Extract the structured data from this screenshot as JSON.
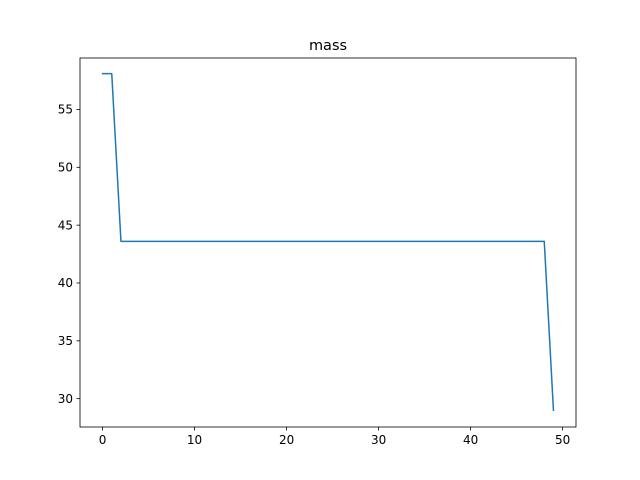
{
  "chart_data": {
    "type": "line",
    "title": "mass",
    "xlabel": "",
    "ylabel": "",
    "xlim": [
      -2.45,
      51.45
    ],
    "ylim": [
      27.55,
      59.45
    ],
    "xticks": [
      0,
      10,
      20,
      30,
      40,
      50
    ],
    "yticks": [
      30,
      35,
      40,
      45,
      50,
      55
    ],
    "grid": false,
    "legend": "none",
    "series": [
      {
        "color": "#1f77b4",
        "x": [
          0,
          1,
          2,
          3,
          4,
          5,
          6,
          7,
          8,
          9,
          10,
          11,
          12,
          13,
          14,
          15,
          16,
          17,
          18,
          19,
          20,
          21,
          22,
          23,
          24,
          25,
          26,
          27,
          28,
          29,
          30,
          31,
          32,
          33,
          34,
          35,
          36,
          37,
          38,
          39,
          40,
          41,
          42,
          43,
          44,
          45,
          46,
          47,
          48,
          49
        ],
        "y": [
          58.1,
          58.1,
          43.6,
          43.6,
          43.6,
          43.6,
          43.6,
          43.6,
          43.6,
          43.6,
          43.6,
          43.6,
          43.6,
          43.6,
          43.6,
          43.6,
          43.6,
          43.6,
          43.6,
          43.6,
          43.6,
          43.6,
          43.6,
          43.6,
          43.6,
          43.6,
          43.6,
          43.6,
          43.6,
          43.6,
          43.6,
          43.6,
          43.6,
          43.6,
          43.6,
          43.6,
          43.6,
          43.6,
          43.6,
          43.6,
          43.6,
          43.6,
          43.6,
          43.6,
          43.6,
          43.6,
          43.6,
          43.6,
          43.6,
          29.0
        ]
      }
    ]
  }
}
